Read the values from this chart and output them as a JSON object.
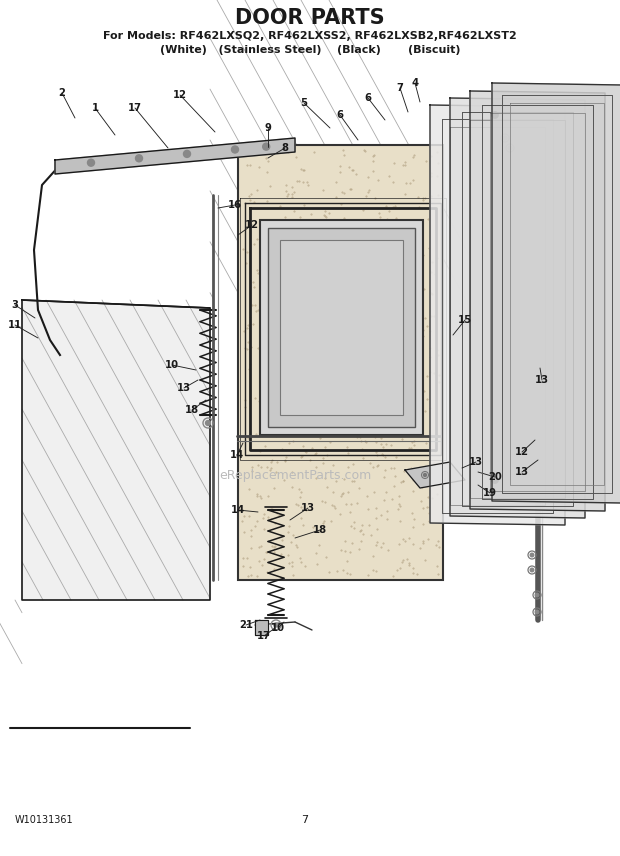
{
  "title": "DOOR PARTS",
  "subtitle1": "For Models: RF462LXSQ2, RF462LXSS2, RF462LXSB2,RF462LXST2",
  "subtitle2": "(White)   (Stainless Steel)    (Black)       (Biscuit)",
  "footer_left": "W10131361",
  "footer_center": "7",
  "bg_color": "#ffffff",
  "line_color": "#1a1a1a",
  "watermark": "eReplacementParts.com",
  "fig_width": 6.2,
  "fig_height": 8.56,
  "dpi": 100
}
